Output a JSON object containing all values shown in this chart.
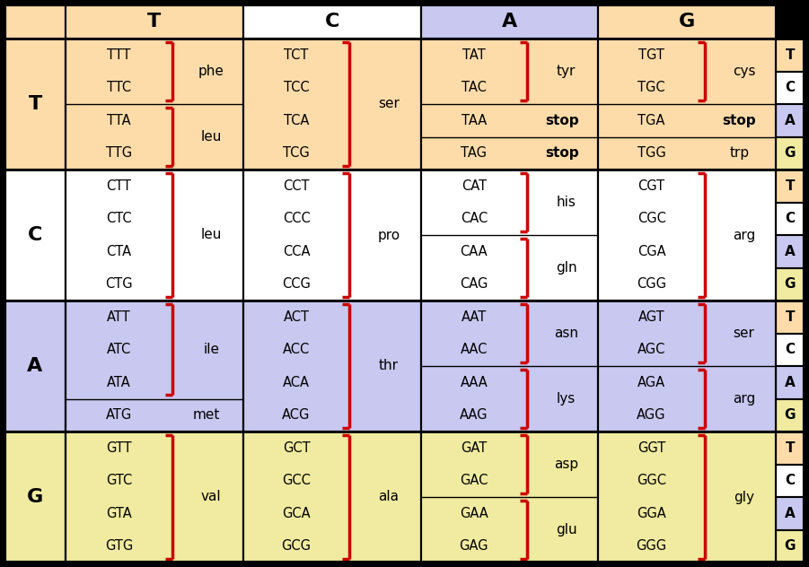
{
  "col_headers": [
    "T",
    "C",
    "A",
    "G"
  ],
  "row_headers": [
    "T",
    "C",
    "A",
    "G"
  ],
  "row_bg": [
    "#FDDCAA",
    "#FFFFFF",
    "#C8C8F0",
    "#F0EBA0"
  ],
  "col_header_bg": [
    "#FDDCAA",
    "#FFFFFF",
    "#C8C8F0",
    "#FDDCAA"
  ],
  "right_bg": [
    "#FDDCAA",
    "#FFFFFF",
    "#C8C8F0",
    "#F0EBA0"
  ],
  "top_left_bg": "#FDDCAA",
  "cells": {
    "TT": {
      "codons": [
        "TTT",
        "TTC",
        "TTA",
        "TTG"
      ],
      "groups": [
        {
          "aa": "phe",
          "rows": [
            0,
            1
          ]
        },
        {
          "aa": "leu",
          "rows": [
            2,
            3
          ]
        }
      ]
    },
    "TC": {
      "codons": [
        "TCT",
        "TCC",
        "TCA",
        "TCG"
      ],
      "groups": [
        {
          "aa": "ser",
          "rows": [
            0,
            1,
            2,
            3
          ]
        }
      ]
    },
    "TA": {
      "codons": [
        "TAT",
        "TAC",
        "TAA",
        "TAG"
      ],
      "groups": [
        {
          "aa": "tyr",
          "rows": [
            0,
            1
          ]
        },
        {
          "aa": "stop",
          "rows": [
            2
          ]
        },
        {
          "aa": "stop",
          "rows": [
            3
          ]
        }
      ]
    },
    "TG": {
      "codons": [
        "TGT",
        "TGC",
        "TGA",
        "TGG"
      ],
      "groups": [
        {
          "aa": "cys",
          "rows": [
            0,
            1
          ]
        },
        {
          "aa": "stop",
          "rows": [
            2
          ]
        },
        {
          "aa": "trp",
          "rows": [
            3
          ]
        }
      ]
    },
    "CT": {
      "codons": [
        "CTT",
        "CTC",
        "CTA",
        "CTG"
      ],
      "groups": [
        {
          "aa": "leu",
          "rows": [
            0,
            1,
            2,
            3
          ]
        }
      ]
    },
    "CC": {
      "codons": [
        "CCT",
        "CCC",
        "CCA",
        "CCG"
      ],
      "groups": [
        {
          "aa": "pro",
          "rows": [
            0,
            1,
            2,
            3
          ]
        }
      ]
    },
    "CA": {
      "codons": [
        "CAT",
        "CAC",
        "CAA",
        "CAG"
      ],
      "groups": [
        {
          "aa": "his",
          "rows": [
            0,
            1
          ]
        },
        {
          "aa": "gln",
          "rows": [
            2,
            3
          ]
        }
      ]
    },
    "CG": {
      "codons": [
        "CGT",
        "CGC",
        "CGA",
        "CGG"
      ],
      "groups": [
        {
          "aa": "arg",
          "rows": [
            0,
            1,
            2,
            3
          ]
        }
      ]
    },
    "AT": {
      "codons": [
        "ATT",
        "ATC",
        "ATA",
        "ATG"
      ],
      "groups": [
        {
          "aa": "ile",
          "rows": [
            0,
            1,
            2
          ]
        },
        {
          "aa": "met",
          "rows": [
            3
          ]
        }
      ]
    },
    "AC": {
      "codons": [
        "ACT",
        "ACC",
        "ACA",
        "ACG"
      ],
      "groups": [
        {
          "aa": "thr",
          "rows": [
            0,
            1,
            2,
            3
          ]
        }
      ]
    },
    "AA": {
      "codons": [
        "AAT",
        "AAC",
        "AAA",
        "AAG"
      ],
      "groups": [
        {
          "aa": "asn",
          "rows": [
            0,
            1
          ]
        },
        {
          "aa": "lys",
          "rows": [
            2,
            3
          ]
        }
      ]
    },
    "AG": {
      "codons": [
        "AGT",
        "AGC",
        "AGA",
        "AGG"
      ],
      "groups": [
        {
          "aa": "ser",
          "rows": [
            0,
            1
          ]
        },
        {
          "aa": "arg",
          "rows": [
            2,
            3
          ]
        }
      ]
    },
    "GT": {
      "codons": [
        "GTT",
        "GTC",
        "GTA",
        "GTG"
      ],
      "groups": [
        {
          "aa": "val",
          "rows": [
            0,
            1,
            2,
            3
          ]
        }
      ]
    },
    "GC": {
      "codons": [
        "GCT",
        "GCC",
        "GCA",
        "GCG"
      ],
      "groups": [
        {
          "aa": "ala",
          "rows": [
            0,
            1,
            2,
            3
          ]
        }
      ]
    },
    "GA": {
      "codons": [
        "GAT",
        "GAC",
        "GAA",
        "GAG"
      ],
      "groups": [
        {
          "aa": "asp",
          "rows": [
            0,
            1
          ]
        },
        {
          "aa": "glu",
          "rows": [
            2,
            3
          ]
        }
      ]
    },
    "GG": {
      "codons": [
        "GGT",
        "GGC",
        "GGA",
        "GGG"
      ],
      "groups": [
        {
          "aa": "gly",
          "rows": [
            0,
            1,
            2,
            3
          ]
        }
      ]
    }
  },
  "bracket_color": "#CC0000",
  "border_color": "#000000",
  "divider_color": "#000000"
}
